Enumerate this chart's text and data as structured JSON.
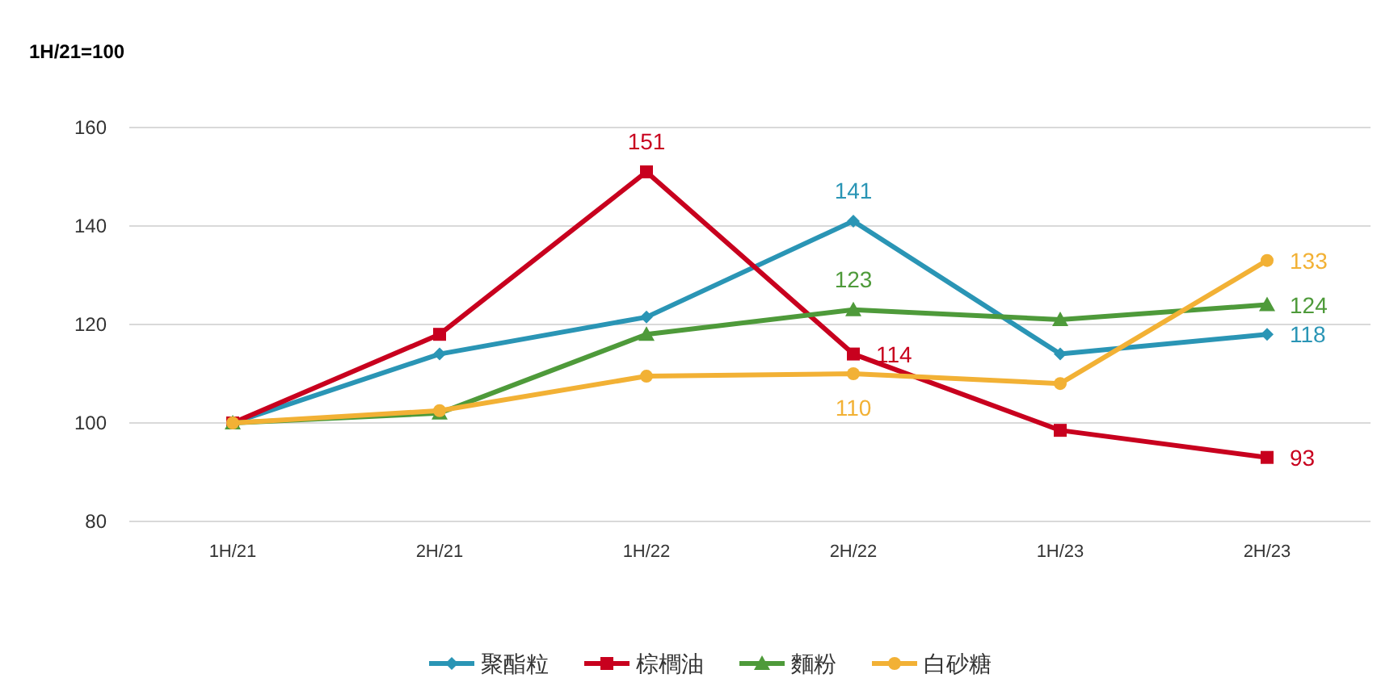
{
  "chart_data": {
    "type": "line",
    "ylabel": "1H/21=100",
    "categories": [
      "1H/21",
      "2H/21",
      "1H/22",
      "2H/22",
      "1H/23",
      "2H/23"
    ],
    "ylim": [
      80,
      160
    ],
    "yticks": [
      80,
      100,
      120,
      140,
      160
    ],
    "grid": "y",
    "legend": "bottom",
    "series": [
      {
        "name": "聚酯粒",
        "color": "#2a95b5",
        "marker": "diamond",
        "values": [
          100,
          114,
          121.5,
          141,
          114,
          118
        ],
        "value_labels": [
          null,
          null,
          null,
          "141",
          null,
          "118"
        ]
      },
      {
        "name": "棕櫚油",
        "color": "#c8001e",
        "marker": "square",
        "values": [
          100,
          118,
          151,
          114,
          98.5,
          93
        ],
        "value_labels": [
          null,
          null,
          "151",
          "114",
          null,
          "93"
        ]
      },
      {
        "name": "麵粉",
        "color": "#4e9a3a",
        "marker": "triangle",
        "values": [
          100,
          102,
          118,
          123,
          121,
          124
        ],
        "value_labels": [
          null,
          null,
          null,
          "123",
          null,
          "124"
        ]
      },
      {
        "name": "白砂糖",
        "color": "#f2b135",
        "marker": "circle",
        "values": [
          100,
          102.5,
          109.5,
          110,
          108,
          133
        ],
        "value_labels": [
          null,
          null,
          null,
          "110",
          null,
          "133"
        ]
      }
    ]
  }
}
